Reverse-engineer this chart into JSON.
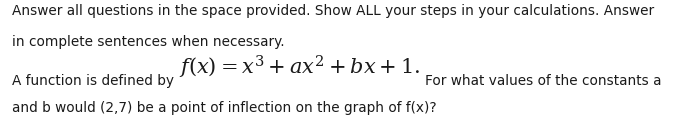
{
  "bg_color": "#ffffff",
  "text_color": "#1a1a1a",
  "header_line1": "Answer all questions in the space provided. Show ALL your steps in your calculations. Answer",
  "header_line2": "in complete sentences when necessary.",
  "body_prefix": "A function is defined by ",
  "body_formula": "$f(x) = x^3 + ax^2 + bx + 1.$",
  "body_suffix": "For what values of the constants a",
  "body_line2": "and b would (2,7) be a point of inflection on the graph of f(x)?",
  "header_fontsize": 9.8,
  "body_fontsize": 9.8,
  "formula_fontsize": 15.0,
  "figsize": [
    6.83,
    1.33
  ],
  "dpi": 100
}
